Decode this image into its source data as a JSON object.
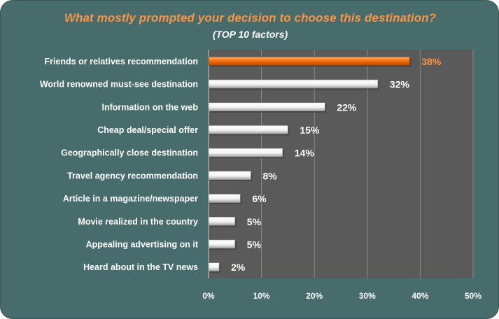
{
  "chart_data": {
    "type": "bar",
    "orientation": "horizontal",
    "title": "What mostly prompted your decision to choose this destination?",
    "subtitle": "(TOP 10 factors)",
    "categories": [
      "Friends or relatives recommendation",
      "World renowned must-see destination",
      "Information on the web",
      "Cheap deal/special offer",
      "Geographically close destination",
      "Travel agency recommendation",
      "Article in a magazine/newspaper",
      "Movie realized in the country",
      "Appealing advertising on it",
      "Heard about in the TV news"
    ],
    "values": [
      38,
      32,
      22,
      15,
      14,
      8,
      6,
      5,
      5,
      2
    ],
    "value_labels": [
      "38%",
      "32%",
      "22%",
      "15%",
      "14%",
      "8%",
      "6%",
      "5%",
      "5%",
      "2%"
    ],
    "highlight_index": 0,
    "xlim": [
      0,
      50
    ],
    "x_ticks": [
      0,
      10,
      20,
      30,
      40,
      50
    ],
    "x_tick_labels": [
      "0%",
      "10%",
      "20%",
      "30%",
      "40%",
      "50%"
    ],
    "grid": true,
    "colors": {
      "background": "#486b6b",
      "plot_area": "#5a5a5a",
      "bar": "#ffffff",
      "bar_shade": "#a6a6a6",
      "highlight": "#f36c0a",
      "highlight_text": "#f79646",
      "text": "#ffffff"
    }
  }
}
